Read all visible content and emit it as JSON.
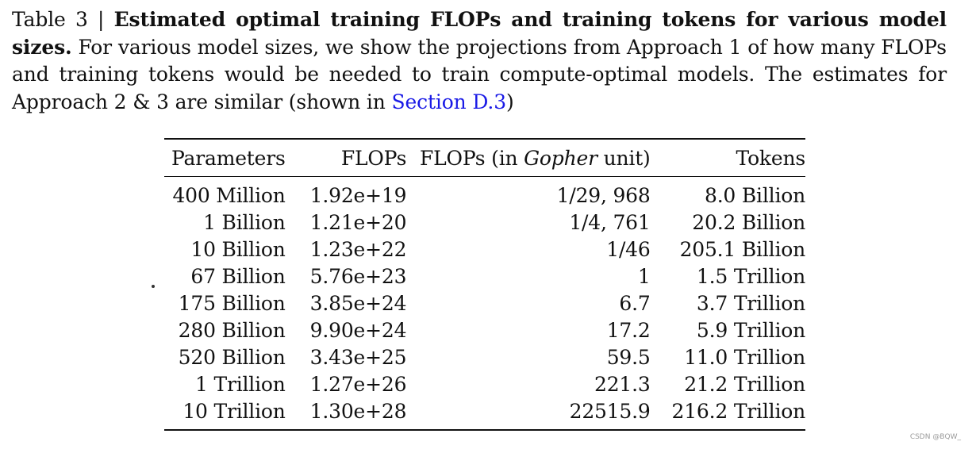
{
  "caption": {
    "label": "Table 3 | ",
    "title": "Estimated optimal training FLOPs and training tokens for various model sizes.",
    "body_before_link": " For various model sizes, we show the projections from Approach 1 of how many FLOPs and training tokens would be needed to train compute-optimal models. The estimates for Approach 2 & 3 are similar (shown in ",
    "link": "Section D.3",
    "body_after_link": ")"
  },
  "table": {
    "headers": {
      "parameters": "Parameters",
      "flops": "FLOPs",
      "flops_gopher_prefix": "FLOPs (in ",
      "flops_gopher_italic": "Gopher",
      "flops_gopher_suffix": " unit)",
      "tokens": "Tokens"
    },
    "rows": [
      {
        "parameters": "400 Million",
        "flops": "1.92e+19",
        "gopher": "1/29, 968",
        "tokens": "8.0 Billion"
      },
      {
        "parameters": "1 Billion",
        "flops": "1.21e+20",
        "gopher": "1/4, 761",
        "tokens": "20.2 Billion"
      },
      {
        "parameters": "10 Billion",
        "flops": "1.23e+22",
        "gopher": "1/46",
        "tokens": "205.1 Billion"
      },
      {
        "parameters": "67 Billion",
        "flops": "5.76e+23",
        "gopher": "1",
        "tokens": "1.5 Trillion"
      },
      {
        "parameters": "175 Billion",
        "flops": "3.85e+24",
        "gopher": "6.7",
        "tokens": "3.7 Trillion"
      },
      {
        "parameters": "280 Billion",
        "flops": "9.90e+24",
        "gopher": "17.2",
        "tokens": "5.9 Trillion"
      },
      {
        "parameters": "520 Billion",
        "flops": "3.43e+25",
        "gopher": "59.5",
        "tokens": "11.0 Trillion"
      },
      {
        "parameters": "1 Trillion",
        "flops": "1.27e+26",
        "gopher": "221.3",
        "tokens": "21.2 Trillion"
      },
      {
        "parameters": "10 Trillion",
        "flops": "1.30e+28",
        "gopher": "22515.9",
        "tokens": "216.2 Trillion"
      }
    ]
  },
  "watermark": "CSDN @BQW_"
}
